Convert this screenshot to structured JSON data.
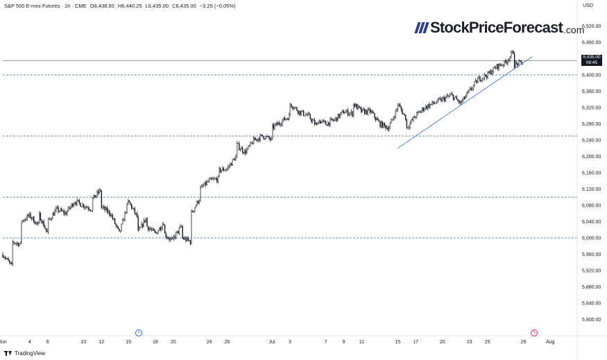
{
  "header": {
    "symbol": "S&P 500 E-mini Futures · 1h · CME",
    "open": "O6,438.50",
    "high": "H6,440.25",
    "low": "L6,435.00",
    "close": "C6,435.00",
    "change": "−3.25 (−0.05%)"
  },
  "currency": "USD",
  "logo": {
    "name": "StockPriceForecast",
    "suffix": ".com"
  },
  "price_tag": {
    "price": "6,435.00",
    "countdown": "08:45"
  },
  "footer": {
    "brand": "TradingView"
  },
  "colors": {
    "candle": "#131722",
    "support_line": "#5b87c8",
    "trendline": "#4a86e8",
    "price_line": "#9598a1",
    "event_blue": "#2962ff",
    "event_pink": "#e91e63"
  },
  "event_icons": [
    "calendar-event-icon",
    "lightning-event-icon"
  ],
  "chart_data": {
    "type": "candlestick",
    "title": "S&P 500 E-mini Futures",
    "interval": "1h",
    "y_axis": {
      "range": [
        5760,
        6560
      ],
      "ticks": [
        5800,
        5840,
        5880,
        5920,
        5960,
        6000,
        6040,
        6080,
        6120,
        6160,
        6200,
        6240,
        6280,
        6320,
        6360,
        6400,
        6440,
        6480,
        6520
      ],
      "tick_labels": [
        "5,800.00",
        "5,840.00",
        "5,880.00",
        "5,920.00",
        "5,960.00",
        "6,000.00",
        "6,040.00",
        "6,080.00",
        "6,120.00",
        "6,160.00",
        "6,200.00",
        "6,240.00",
        "6,280.00",
        "6,320.00",
        "6,360.00",
        "6,400.00",
        "6,440.00",
        "6,480.00",
        "6,520.00"
      ]
    },
    "x_axis": {
      "range": [
        "2025-06-01",
        "2025-08-04"
      ],
      "ticks": [
        "2025-06-01",
        "2025-06-04",
        "2025-06-06",
        "2025-06-10",
        "2025-06-12",
        "2025-06-15",
        "2025-06-18",
        "2025-06-20",
        "2025-06-24",
        "2025-06-26",
        "2025-07-01",
        "2025-07-03",
        "2025-07-07",
        "2025-07-09",
        "2025-07-11",
        "2025-07-15",
        "2025-07-17",
        "2025-07-20",
        "2025-07-23",
        "2025-07-25",
        "2025-07-29",
        "2025-08-01"
      ],
      "tick_labels": [
        "Jun",
        "4",
        "6",
        "10",
        "12",
        "15",
        "18",
        "20",
        "24",
        "26",
        "Jul",
        "3",
        "7",
        "9",
        "11",
        "15",
        "17",
        "20",
        "23",
        "25",
        "29",
        "Aug"
      ]
    },
    "horizontal_levels": [
      6000,
      6100,
      6250,
      6400
    ],
    "trendline": {
      "start": {
        "x": "2025-07-15",
        "y": 6220
      },
      "end": {
        "x": "2025-07-30",
        "y": 6445
      }
    },
    "last_price": 6435,
    "path": [
      [
        "2025-06-01",
        5960
      ],
      [
        "2025-06-02",
        5930
      ],
      [
        "2025-06-02",
        5990
      ],
      [
        "2025-06-03",
        5985
      ],
      [
        "2025-06-03",
        6040
      ],
      [
        "2025-06-04",
        6055
      ],
      [
        "2025-06-05",
        6030
      ],
      [
        "2025-06-05",
        6060
      ],
      [
        "2025-06-06",
        6010
      ],
      [
        "2025-06-06",
        6040
      ],
      [
        "2025-06-07",
        6070
      ],
      [
        "2025-06-08",
        6060
      ],
      [
        "2025-06-09",
        6090
      ],
      [
        "2025-06-10",
        6080
      ],
      [
        "2025-06-11",
        6070
      ],
      [
        "2025-06-11",
        6095
      ],
      [
        "2025-06-12",
        6120
      ],
      [
        "2025-06-12",
        6075
      ],
      [
        "2025-06-13",
        6060
      ],
      [
        "2025-06-14",
        6010
      ],
      [
        "2025-06-15",
        6090
      ],
      [
        "2025-06-16",
        6050
      ],
      [
        "2025-06-16",
        6010
      ],
      [
        "2025-06-17",
        6050
      ],
      [
        "2025-06-17",
        6030
      ],
      [
        "2025-06-18",
        6010
      ],
      [
        "2025-06-19",
        6040
      ],
      [
        "2025-06-19",
        6010
      ],
      [
        "2025-06-20",
        5990
      ],
      [
        "2025-06-20",
        6000
      ],
      [
        "2025-06-21",
        6030
      ],
      [
        "2025-06-21",
        6000
      ],
      [
        "2025-06-22",
        5990
      ],
      [
        "2025-06-22",
        6060
      ],
      [
        "2025-06-23",
        6100
      ],
      [
        "2025-06-23",
        6120
      ],
      [
        "2025-06-24",
        6140
      ],
      [
        "2025-06-25",
        6145
      ],
      [
        "2025-06-25",
        6165
      ],
      [
        "2025-06-26",
        6170
      ],
      [
        "2025-06-27",
        6200
      ],
      [
        "2025-06-27",
        6230
      ],
      [
        "2025-06-28",
        6210
      ],
      [
        "2025-06-29",
        6240
      ],
      [
        "2025-06-30",
        6250
      ],
      [
        "2025-07-01",
        6240
      ],
      [
        "2025-07-01",
        6270
      ],
      [
        "2025-07-02",
        6285
      ],
      [
        "2025-07-03",
        6300
      ],
      [
        "2025-07-03",
        6330
      ],
      [
        "2025-07-04",
        6310
      ],
      [
        "2025-07-05",
        6300
      ],
      [
        "2025-07-06",
        6275
      ],
      [
        "2025-07-06",
        6290
      ],
      [
        "2025-07-07",
        6280
      ],
      [
        "2025-07-08",
        6290
      ],
      [
        "2025-07-09",
        6310
      ],
      [
        "2025-07-10",
        6305
      ],
      [
        "2025-07-10",
        6330
      ],
      [
        "2025-07-11",
        6310
      ],
      [
        "2025-07-12",
        6310
      ],
      [
        "2025-07-13",
        6280
      ],
      [
        "2025-07-14",
        6270
      ],
      [
        "2025-07-15",
        6320
      ],
      [
        "2025-07-15",
        6330
      ],
      [
        "2025-07-16",
        6290
      ],
      [
        "2025-07-16",
        6270
      ],
      [
        "2025-07-17",
        6300
      ],
      [
        "2025-07-18",
        6320
      ],
      [
        "2025-07-19",
        6330
      ],
      [
        "2025-07-20",
        6340
      ],
      [
        "2025-07-21",
        6350
      ],
      [
        "2025-07-22",
        6330
      ],
      [
        "2025-07-23",
        6360
      ],
      [
        "2025-07-24",
        6390
      ],
      [
        "2025-07-25",
        6400
      ],
      [
        "2025-07-26",
        6420
      ],
      [
        "2025-07-27",
        6430
      ],
      [
        "2025-07-28",
        6460
      ],
      [
        "2025-07-28",
        6425
      ],
      [
        "2025-07-29",
        6430
      ],
      [
        "2025-07-29",
        6435
      ]
    ]
  }
}
